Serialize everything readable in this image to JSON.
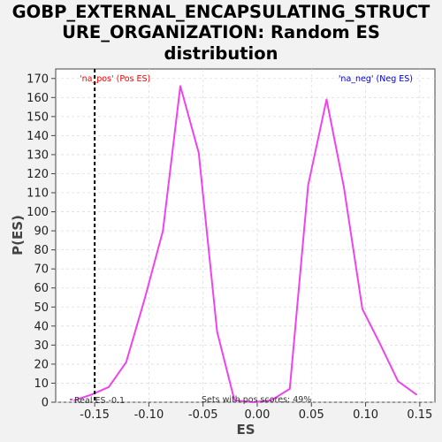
{
  "chart_data": {
    "type": "line",
    "title_lines": [
      "GOBP_EXTERNAL_ENCAPSULATING_STRUCT",
      "URE_ORGANIZATION: Random ES",
      "distribution"
    ],
    "xlabel": "ES",
    "ylabel": "P(ES)",
    "xlim": [
      -0.186,
      0.164
    ],
    "ylim": [
      0,
      175
    ],
    "xticks": [
      -0.15,
      -0.1,
      -0.05,
      0.0,
      0.05,
      0.1,
      0.15
    ],
    "xtick_labels": [
      "-0.15",
      "-0.10",
      "-0.05",
      "0.00",
      "0.05",
      "0.10",
      "0.15"
    ],
    "yticks": [
      0,
      10,
      20,
      30,
      40,
      50,
      60,
      70,
      80,
      90,
      100,
      110,
      120,
      130,
      140,
      150,
      160,
      170
    ],
    "ytick_labels": [
      "0",
      "10",
      "20",
      "30",
      "40",
      "50",
      "60",
      "70",
      "80",
      "90",
      "100",
      "110",
      "120",
      "130",
      "140",
      "150",
      "160",
      "170"
    ],
    "grid": true,
    "series": [
      {
        "color": "#ee44ee",
        "x": [
          -0.169,
          -0.153,
          -0.137,
          -0.121,
          -0.104,
          -0.087,
          -0.071,
          -0.054,
          -0.037,
          -0.021,
          -0.004,
          0.013,
          0.03,
          0.047,
          0.064,
          0.08,
          0.097,
          0.113,
          0.13,
          0.147
        ],
        "y": [
          1,
          4,
          8,
          21,
          54,
          90,
          166,
          131,
          37,
          1,
          0,
          1,
          7,
          114,
          159,
          113,
          49,
          31,
          11,
          4
        ]
      }
    ],
    "real_es": -0.15,
    "annotations": {
      "pos_label": "'na_pos' (Pos ES)",
      "neg_label": "'na_neg' (Neg ES)",
      "real_es_label": "Real ES -0.1",
      "sets_label": "Sets with pos scores: 49%"
    },
    "colors": {
      "pos": "#ff0000",
      "neg": "#0000cc",
      "line": "#ee44ee",
      "real_es": "#000000"
    }
  }
}
